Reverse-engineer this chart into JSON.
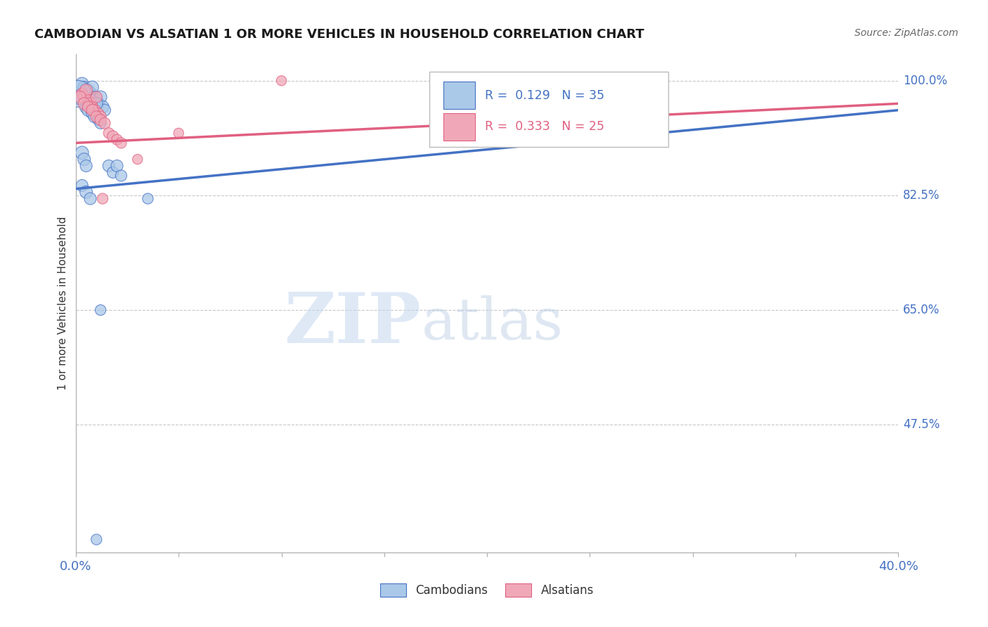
{
  "title": "CAMBODIAN VS ALSATIAN 1 OR MORE VEHICLES IN HOUSEHOLD CORRELATION CHART",
  "source": "Source: ZipAtlas.com",
  "ylabel": "1 or more Vehicles in Household",
  "xlim": [
    0.0,
    0.4
  ],
  "ylim": [
    0.28,
    1.04
  ],
  "ytick_positions": [
    1.0,
    0.825,
    0.65,
    0.475
  ],
  "ytick_labels": [
    "100.0%",
    "82.5%",
    "65.0%",
    "47.5%"
  ],
  "grid_color": "#c8c8c8",
  "background_color": "#ffffff",
  "watermark_zip": "ZIP",
  "watermark_atlas": "atlas",
  "R_cambodian": 0.129,
  "N_cambodian": 35,
  "R_alsatian": 0.333,
  "N_alsatian": 25,
  "cambodian_color": "#aac8e8",
  "alsatian_color": "#f0a8b8",
  "trend_cambodian_color": "#4472c4",
  "trend_alsatian_color": "#e06080",
  "legend_label_cambodian": "Cambodians",
  "legend_label_alsatian": "Alsatians",
  "cam_trend_x0": 0.0,
  "cam_trend_y0": 0.835,
  "cam_trend_x1": 0.4,
  "cam_trend_y1": 0.955,
  "als_trend_x0": 0.0,
  "als_trend_y0": 0.905,
  "als_trend_x1": 0.4,
  "als_trend_y1": 0.965,
  "cambodian_x": [
    0.003,
    0.004,
    0.005,
    0.006,
    0.007,
    0.008,
    0.009,
    0.01,
    0.011,
    0.012,
    0.013,
    0.014,
    0.005,
    0.006,
    0.007,
    0.008,
    0.009,
    0.01,
    0.011,
    0.012,
    0.001,
    0.002,
    0.003,
    0.004,
    0.005,
    0.016,
    0.018,
    0.02,
    0.022,
    0.003,
    0.005,
    0.007,
    0.035,
    0.012,
    0.01
  ],
  "cambodian_y": [
    0.995,
    0.99,
    0.985,
    0.985,
    0.98,
    0.99,
    0.975,
    0.97,
    0.965,
    0.975,
    0.96,
    0.955,
    0.96,
    0.955,
    0.97,
    0.95,
    0.945,
    0.965,
    0.94,
    0.935,
    0.98,
    0.975,
    0.89,
    0.88,
    0.87,
    0.87,
    0.86,
    0.87,
    0.855,
    0.84,
    0.83,
    0.82,
    0.82,
    0.65,
    0.3
  ],
  "cambodian_size": [
    60,
    50,
    70,
    55,
    65,
    55,
    50,
    60,
    50,
    55,
    55,
    50,
    60,
    55,
    60,
    50,
    50,
    55,
    45,
    45,
    250,
    80,
    60,
    55,
    50,
    50,
    45,
    50,
    45,
    50,
    55,
    50,
    40,
    40,
    40
  ],
  "alsatian_x": [
    0.003,
    0.004,
    0.005,
    0.006,
    0.007,
    0.008,
    0.009,
    0.01,
    0.011,
    0.012,
    0.002,
    0.004,
    0.006,
    0.008,
    0.01,
    0.012,
    0.014,
    0.016,
    0.018,
    0.02,
    0.022,
    0.03,
    0.1,
    0.05,
    0.013
  ],
  "alsatian_y": [
    0.98,
    0.975,
    0.985,
    0.97,
    0.965,
    0.96,
    0.955,
    0.975,
    0.95,
    0.945,
    0.975,
    0.965,
    0.96,
    0.955,
    0.945,
    0.94,
    0.935,
    0.92,
    0.915,
    0.91,
    0.905,
    0.88,
    1.0,
    0.92,
    0.82
  ],
  "alsatian_size": [
    45,
    50,
    55,
    45,
    50,
    45,
    50,
    45,
    40,
    45,
    50,
    50,
    45,
    50,
    45,
    45,
    45,
    40,
    45,
    40,
    40,
    35,
    35,
    35,
    40
  ]
}
